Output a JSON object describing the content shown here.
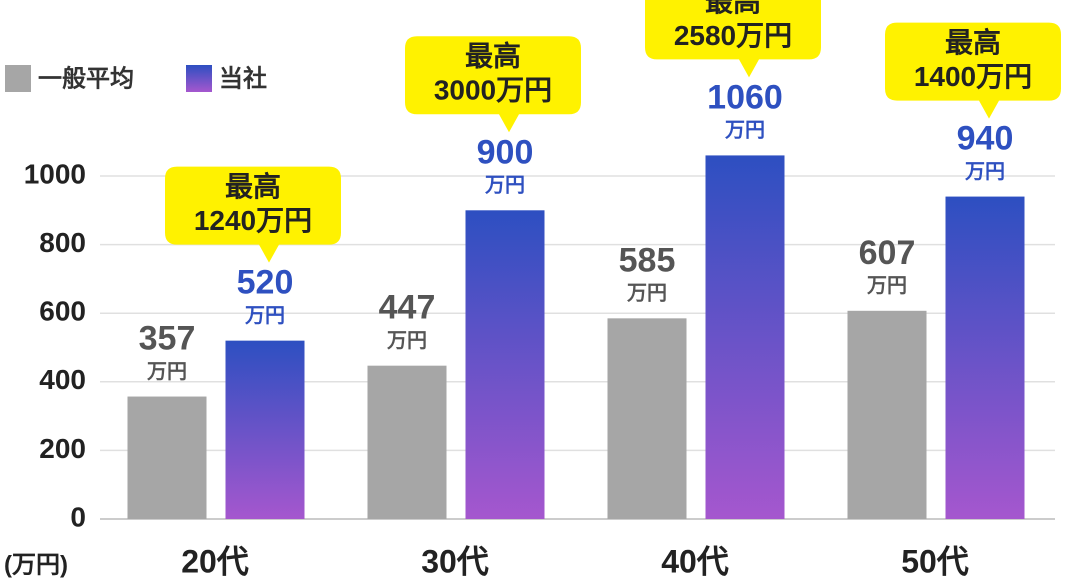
{
  "chart_data": {
    "type": "bar",
    "categories": [
      "20代",
      "30代",
      "40代",
      "50代"
    ],
    "series": [
      {
        "name": "一般平均",
        "color": "#a6a6a6",
        "label_color": "#555555",
        "values": [
          357,
          447,
          585,
          607
        ]
      },
      {
        "name": "当社",
        "color": "#2d4fc1",
        "gradient_end": "#a557ce",
        "label_color": "#2e50c0",
        "values": [
          520,
          900,
          1060,
          940
        ]
      }
    ],
    "value_unit": "万円",
    "y_unit": "(万円)",
    "ylim": [
      0,
      1000
    ],
    "yticks": [
      0,
      200,
      400,
      600,
      800,
      1000
    ],
    "grid": true,
    "legend": "top-left",
    "callouts": [
      [
        "最高",
        "1240万円"
      ],
      [
        "最高",
        "3000万円"
      ],
      [
        "最高",
        "2580万円"
      ],
      [
        "最高",
        "1400万円"
      ]
    ],
    "callout_color": "#fff200"
  }
}
